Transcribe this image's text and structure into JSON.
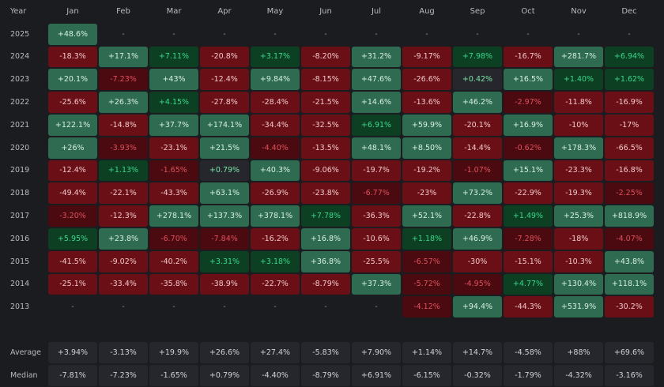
{
  "header": {
    "year_label": "Year",
    "months": [
      "Jan",
      "Feb",
      "Mar",
      "Apr",
      "May",
      "Jun",
      "Jul",
      "Aug",
      "Sep",
      "Oct",
      "Nov",
      "Dec"
    ]
  },
  "rows": [
    {
      "year": "2025",
      "values": [
        "+48.6%",
        "-",
        "-",
        "-",
        "-",
        "-",
        "-",
        "-",
        "-",
        "-",
        "-",
        "-"
      ]
    },
    {
      "year": "2024",
      "values": [
        "-18.3%",
        "+17.1%",
        "+7.11%",
        "-20.8%",
        "+3.17%",
        "-8.20%",
        "+31.2%",
        "-9.17%",
        "+7.98%",
        "-16.7%",
        "+281.7%",
        "+6.94%"
      ]
    },
    {
      "year": "2023",
      "values": [
        "+20.1%",
        "-7.23%",
        "+43%",
        "-12.4%",
        "+9.84%",
        "-8.15%",
        "+47.6%",
        "-26.6%",
        "+0.42%",
        "+16.5%",
        "+1.40%",
        "+1.62%"
      ]
    },
    {
      "year": "2022",
      "values": [
        "-25.6%",
        "+26.3%",
        "+4.15%",
        "-27.8%",
        "-28.4%",
        "-21.5%",
        "+14.6%",
        "-13.6%",
        "+46.2%",
        "-2.97%",
        "-11.8%",
        "-16.9%"
      ]
    },
    {
      "year": "2021",
      "values": [
        "+122.1%",
        "-14.8%",
        "+37.7%",
        "+174.1%",
        "-34.4%",
        "-32.5%",
        "+6.91%",
        "+59.9%",
        "-20.1%",
        "+16.9%",
        "-10%",
        "-17%"
      ]
    },
    {
      "year": "2020",
      "values": [
        "+26%",
        "-3.93%",
        "-23.1%",
        "+21.5%",
        "-4.40%",
        "-13.5%",
        "+48.1%",
        "+8.50%",
        "-14.4%",
        "-0.62%",
        "+178.3%",
        "-66.5%"
      ]
    },
    {
      "year": "2019",
      "values": [
        "-12.4%",
        "+1.13%",
        "-1.65%",
        "+0.79%",
        "+40.3%",
        "-9.06%",
        "-19.7%",
        "-19.2%",
        "-1.07%",
        "+15.1%",
        "-23.3%",
        "-16.8%"
      ]
    },
    {
      "year": "2018",
      "values": [
        "-49.4%",
        "-22.1%",
        "-43.3%",
        "+63.1%",
        "-26.9%",
        "-23.8%",
        "-6.77%",
        "-23%",
        "+73.2%",
        "-22.9%",
        "-19.3%",
        "-2.25%"
      ]
    },
    {
      "year": "2017",
      "values": [
        "-3.20%",
        "-12.3%",
        "+278.1%",
        "+137.3%",
        "+378.1%",
        "+7.78%",
        "-36.3%",
        "+52.1%",
        "-22.8%",
        "+1.49%",
        "+25.3%",
        "+818.9%"
      ]
    },
    {
      "year": "2016",
      "values": [
        "+5.95%",
        "+23.8%",
        "-6.70%",
        "-7.84%",
        "-16.2%",
        "+16.8%",
        "-10.6%",
        "+1.18%",
        "+46.9%",
        "-7.28%",
        "-18%",
        "-4.07%"
      ]
    },
    {
      "year": "2015",
      "values": [
        "-41.5%",
        "-9.02%",
        "-40.2%",
        "+3.31%",
        "+3.18%",
        "+36.8%",
        "-25.5%",
        "-6.57%",
        "-30%",
        "-15.1%",
        "-10.3%",
        "+43.8%"
      ]
    },
    {
      "year": "2014",
      "values": [
        "-25.1%",
        "-33.4%",
        "-35.8%",
        "-38.9%",
        "-22.7%",
        "-8.79%",
        "+37.3%",
        "-5.72%",
        "-4.95%",
        "+4.77%",
        "+130.4%",
        "+118.1%"
      ]
    },
    {
      "year": "2013",
      "values": [
        "-",
        "-",
        "-",
        "-",
        "-",
        "-",
        "-",
        "-4.12%",
        "+94.4%",
        "-44.3%",
        "+531.9%",
        "-30.2%"
      ]
    }
  ],
  "stats": [
    {
      "label": "Average",
      "values": [
        "+3.94%",
        "-3.13%",
        "+19.9%",
        "+26.6%",
        "+27.4%",
        "-5.83%",
        "+7.90%",
        "+1.14%",
        "+14.7%",
        "-4.58%",
        "+88%",
        "+69.6%"
      ]
    },
    {
      "label": "Median",
      "values": [
        "-7.81%",
        "-7.23%",
        "-1.65%",
        "+0.79%",
        "-4.40%",
        "-8.79%",
        "+6.91%",
        "-6.15%",
        "-0.32%",
        "-1.79%",
        "-4.32%",
        "-3.16%"
      ]
    }
  ],
  "colors": {
    "positive_strong": "#2e6b50",
    "positive_small": "#0d3f22",
    "negative_strong": "#6b0f16",
    "negative_small": "#4a0a10",
    "neutral": "#25272c",
    "positive_small_text": "#39d98a",
    "negative_small_text": "#e0505a"
  }
}
